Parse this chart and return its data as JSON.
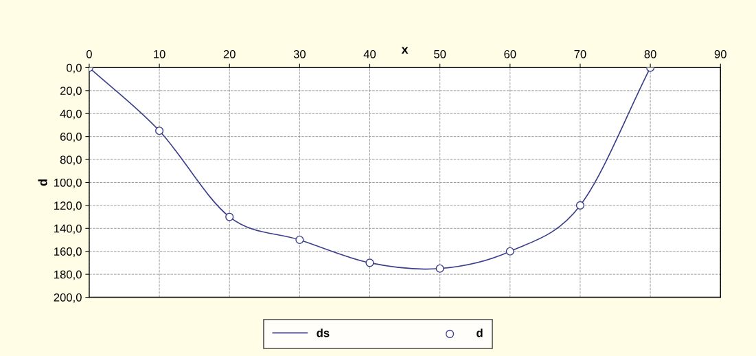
{
  "chart_data": {
    "type": "line",
    "xlabel": "x",
    "ylabel": "d",
    "x": [
      0,
      10,
      20,
      30,
      40,
      50,
      60,
      70,
      80
    ],
    "series": [
      {
        "name": "ds",
        "color": "#3c3f8c",
        "marker": "none",
        "values": [
          0,
          55,
          130,
          150,
          170,
          175,
          160,
          120,
          0
        ]
      },
      {
        "name": "d",
        "type": "scatter",
        "color": "#3c3f8c",
        "marker": "circle",
        "values": [
          0,
          55,
          130,
          150,
          170,
          175,
          160,
          120,
          0
        ]
      }
    ],
    "xlim": [
      0,
      90
    ],
    "xticks": [
      0,
      10,
      20,
      30,
      40,
      50,
      60,
      70,
      80,
      90
    ],
    "ylim": [
      200,
      0
    ],
    "yticks": [
      {
        "value": 0,
        "label": "0,0"
      },
      {
        "value": 20,
        "label": "20,0"
      },
      {
        "value": 40,
        "label": "40,0"
      },
      {
        "value": 60,
        "label": "60,0"
      },
      {
        "value": 80,
        "label": "80,0"
      },
      {
        "value": 100,
        "label": "100,0"
      },
      {
        "value": 120,
        "label": "120,0"
      },
      {
        "value": 140,
        "label": "140,0"
      },
      {
        "value": 160,
        "label": "160,0"
      },
      {
        "value": 180,
        "label": "180,0"
      },
      {
        "value": 200,
        "label": "200,0"
      }
    ],
    "grid": true,
    "legend": "bottom"
  }
}
